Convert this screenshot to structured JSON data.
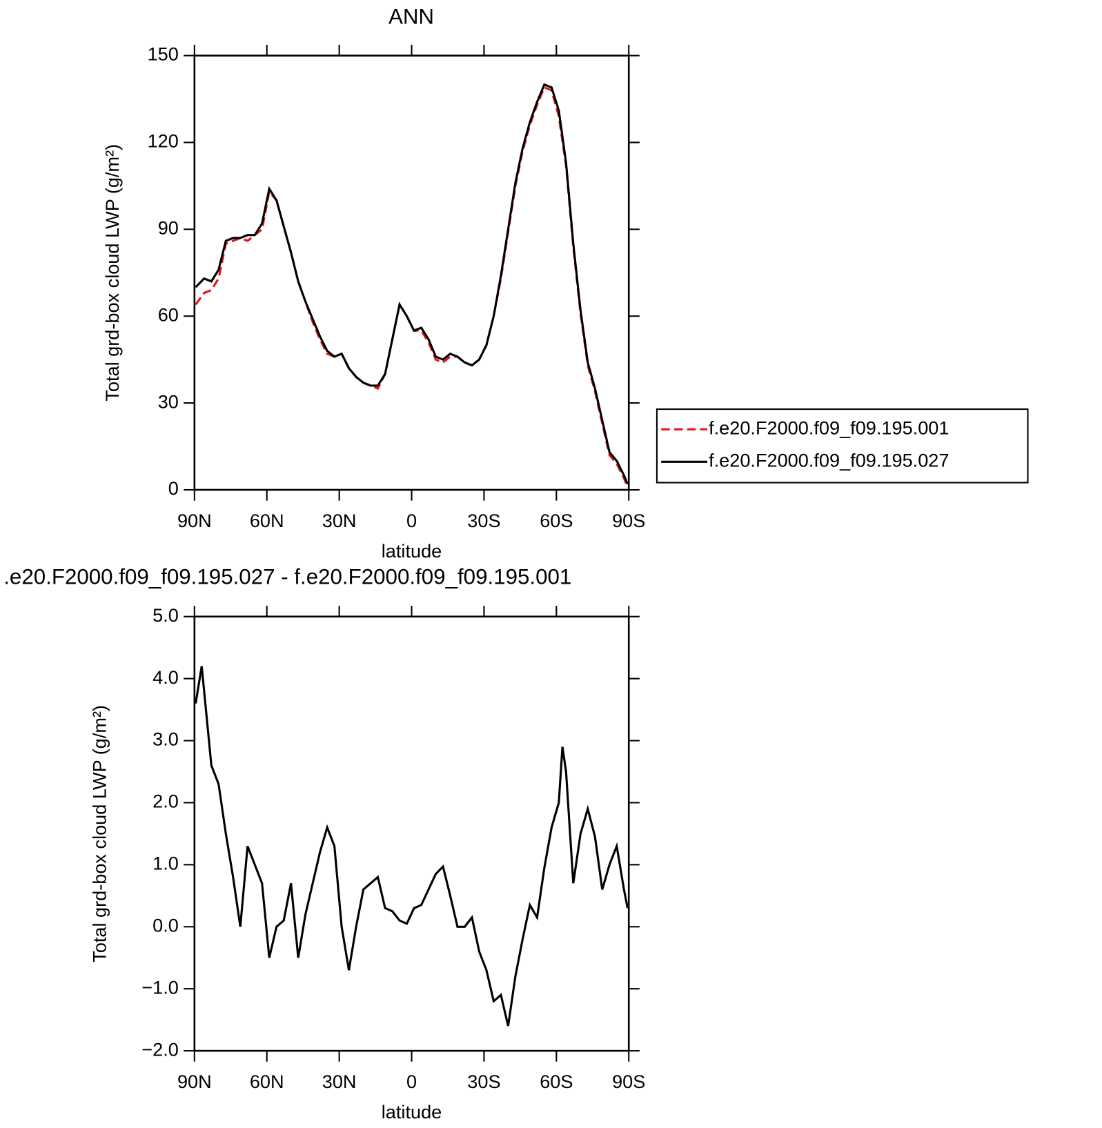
{
  "chart_data": [
    {
      "type": "line",
      "title": "ANN",
      "xlabel": "latitude",
      "ylabel": "Total grd-box cloud LWP (g/m²)",
      "x": [
        89.5,
        86,
        83,
        80,
        77,
        74,
        71,
        68,
        65,
        62,
        59,
        56,
        53,
        50,
        47,
        44,
        41,
        38,
        35,
        32,
        29,
        26,
        23,
        20,
        17,
        14,
        11,
        8,
        5,
        2,
        -1,
        -4,
        -7,
        -10,
        -13,
        -16,
        -19,
        -22,
        -25,
        -28,
        -31,
        -34,
        -37,
        -40,
        -43,
        -46,
        -49,
        -52,
        -55,
        -58,
        -61,
        -64,
        -67,
        -70,
        -73,
        -76,
        -79,
        -82,
        -85,
        -88,
        -89.5
      ],
      "series": [
        {
          "name": "f.e20.F2000.f09_f09.195.001",
          "color": "#e8141c",
          "dash": true,
          "values": [
            64,
            68,
            69,
            73,
            85,
            86,
            87,
            86,
            88,
            90,
            103,
            100,
            91,
            82,
            72,
            65,
            58,
            52,
            47,
            46,
            47,
            42,
            39,
            37,
            36,
            35,
            40,
            52,
            64,
            60,
            55,
            55,
            51,
            45,
            44,
            46,
            46,
            44,
            43,
            45,
            50,
            60,
            73,
            89,
            105,
            117,
            126,
            133,
            139,
            138,
            129,
            112,
            84,
            61,
            43,
            34,
            23,
            12,
            9,
            4,
            1
          ]
        },
        {
          "name": "f.e20.F2000.f09_f09.195.027",
          "color": "#000000",
          "dash": false,
          "values": [
            70,
            73,
            72,
            76,
            86,
            87,
            87,
            88,
            88,
            92,
            104,
            100,
            91,
            82,
            72,
            65,
            59,
            53,
            48,
            46,
            47,
            42,
            39,
            37,
            36,
            36,
            40,
            52,
            64,
            60,
            55,
            56,
            52,
            46,
            45,
            47,
            46,
            44,
            43,
            45,
            50,
            60,
            74,
            90,
            106,
            118,
            127,
            134,
            140,
            139,
            131,
            113,
            85,
            62,
            44,
            35,
            24,
            13,
            10,
            5,
            2
          ]
        }
      ],
      "xlim": [
        90,
        -90
      ],
      "ylim": [
        0,
        150
      ],
      "xticks": [
        {
          "value": 90,
          "label": "90N"
        },
        {
          "value": 60,
          "label": "60N"
        },
        {
          "value": 30,
          "label": "30N"
        },
        0,
        {
          "value": -30,
          "label": "30S"
        },
        {
          "value": -60,
          "label": "60S"
        },
        {
          "value": -90,
          "label": "90S"
        }
      ],
      "yticks": [
        0,
        30,
        60,
        90,
        120,
        150
      ],
      "legend": "right"
    },
    {
      "type": "line",
      "title": ".e20.F2000.f09_f09.195.027 - f.e20.F2000.f09_f09.195.001",
      "xlabel": "latitude",
      "ylabel": "Total grd-box cloud LWP (g/m²)",
      "x": [
        89.5,
        87,
        83,
        80,
        77,
        74,
        71,
        68,
        65,
        62,
        59,
        56,
        53,
        50,
        47,
        44,
        41,
        38,
        35,
        32,
        29,
        26,
        23,
        20,
        17,
        14,
        11,
        8,
        5,
        2,
        -1,
        -4,
        -7,
        -10,
        -13,
        -16,
        -19,
        -22,
        -25,
        -28,
        -31,
        -34,
        -37,
        -40,
        -43,
        -46,
        -49,
        -52,
        -55,
        -58,
        -61,
        -62.5,
        -64,
        -67,
        -70,
        -73,
        -76,
        -79,
        -82,
        -85,
        -88,
        -89.5
      ],
      "series": [
        {
          "color": "#000000",
          "values": [
            3.6,
            4.2,
            2.6,
            2.3,
            1.5,
            0.8,
            0.0,
            1.3,
            1.0,
            0.7,
            -0.5,
            0.0,
            0.1,
            0.7,
            -0.5,
            0.2,
            0.7,
            1.2,
            1.6,
            1.3,
            0.0,
            -0.7,
            0.0,
            0.6,
            0.7,
            0.8,
            0.3,
            0.25,
            0.1,
            0.05,
            0.3,
            0.35,
            0.6,
            0.85,
            0.97,
            0.5,
            0.0,
            0.0,
            0.15,
            -0.4,
            -0.7,
            -1.2,
            -1.1,
            -1.6,
            -0.8,
            -0.2,
            0.35,
            0.15,
            0.95,
            1.6,
            2.0,
            2.9,
            2.5,
            0.7,
            1.5,
            1.9,
            1.45,
            0.6,
            1.0,
            1.3,
            0.6,
            0.3
          ]
        }
      ],
      "xlim": [
        90,
        -90
      ],
      "ylim": [
        -2,
        5
      ],
      "xticks": [
        {
          "value": 90,
          "label": "90N"
        },
        {
          "value": 60,
          "label": "60N"
        },
        {
          "value": 30,
          "label": "30N"
        },
        0,
        {
          "value": -30,
          "label": "30S"
        },
        {
          "value": -60,
          "label": "60S"
        },
        {
          "value": -90,
          "label": "90S"
        }
      ],
      "yticks": [
        {
          "value": -2,
          "label": "−2.0"
        },
        {
          "value": -1,
          "label": "−1.0"
        },
        {
          "value": 0,
          "label": "0.0"
        },
        {
          "value": 1,
          "label": "1.0"
        },
        {
          "value": 2,
          "label": "2.0"
        },
        {
          "value": 3,
          "label": "3.0"
        },
        {
          "value": 4,
          "label": "4.0"
        },
        {
          "value": 5,
          "label": "5.0"
        }
      ]
    }
  ]
}
